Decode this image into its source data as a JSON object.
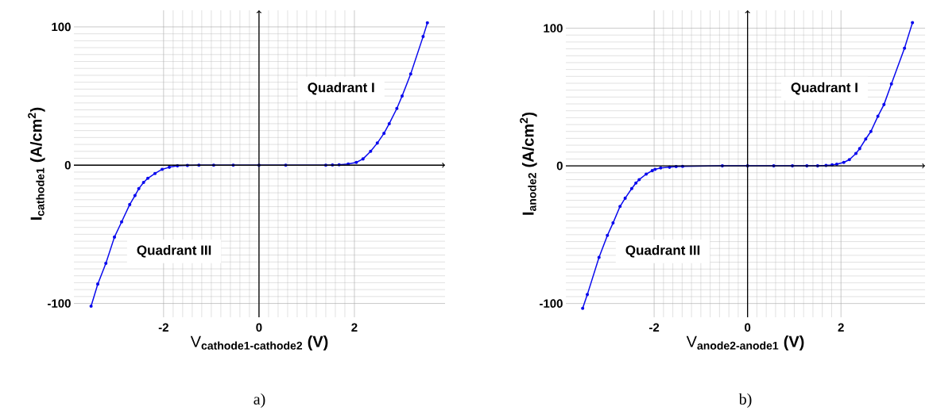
{
  "chart_data": [
    {
      "type": "line",
      "xlabel": "\\mathrm{V}_{\\text{cathode1-cathode2}}\\text{ (V)}",
      "ylabel": "I$_{cathode1}$ (A/cm$^{2}$)",
      "annotations": [
        "Quadrant I",
        "Quadrant III",
        "a)"
      ],
      "x": [
        -3.52,
        -3.38,
        -3.21,
        -3.03,
        -2.88,
        -2.71,
        -2.6,
        -2.52,
        -2.42,
        -2.33,
        -2.18,
        -2.03,
        -1.88,
        -1.71,
        -1.5,
        -1.26,
        -0.95,
        -0.54,
        0,
        0.56,
        1.4,
        1.54,
        1.68,
        1.87,
        2.04,
        2.18,
        2.34,
        2.48,
        2.62,
        2.73,
        2.89,
        3.0,
        3.18,
        3.44,
        3.53
      ],
      "series": [
        {
          "color": "#0a0aee",
          "values": [
            -102,
            -86,
            -71,
            -52,
            -41,
            -28.5,
            -22,
            -17,
            -12.5,
            -9.5,
            -6,
            -3,
            -1.5,
            -0.5,
            -0.2,
            0,
            0,
            0,
            0,
            0,
            0,
            0.1,
            0.3,
            0.8,
            2,
            4.5,
            10,
            16,
            23,
            30,
            41,
            50,
            66,
            93,
            103
          ]
        }
      ],
      "xlim": [
        -3.88,
        3.9
      ],
      "ylim": [
        -110,
        112
      ],
      "xticks": [
        -2,
        0,
        2
      ],
      "yticks": [
        -100,
        0,
        100
      ],
      "grid": true,
      "marker": "circle",
      "line_style": "solid"
    },
    {
      "type": "line",
      "xlabel": "\\mathrm{V}_{\\text{anode2-anode1}}\\text{ (V)}",
      "ylabel": "I$_{anode2}$ (A/cm$^{2}$)",
      "annotations": [
        "Quadrant I",
        "Quadrant III",
        "b)"
      ],
      "x": [
        -3.53,
        -3.43,
        -3.18,
        -3.0,
        -2.88,
        -2.73,
        -2.62,
        -2.48,
        -2.39,
        -2.32,
        -2.17,
        -2.04,
        -1.98,
        -1.86,
        -1.67,
        -1.53,
        -1.39,
        -0.54,
        0,
        0.56,
        0.96,
        1.27,
        1.5,
        1.68,
        1.81,
        1.91,
        2.06,
        2.18,
        2.32,
        2.4,
        2.53,
        2.64,
        2.79,
        2.92,
        3.08,
        3.36,
        3.53
      ],
      "series": [
        {
          "color": "#0a0aee",
          "values": [
            -103.5,
            -93.5,
            -66.5,
            -50.5,
            -41.5,
            -29.5,
            -23.5,
            -16.5,
            -12.5,
            -10,
            -6,
            -3.5,
            -2.5,
            -1.5,
            -1,
            -0.5,
            -0.4,
            0,
            0,
            0,
            0,
            0,
            0,
            0.3,
            0.7,
            1.2,
            2.5,
            4.5,
            9,
            12.5,
            19.5,
            25,
            36,
            44.5,
            59.5,
            85.5,
            104
          ]
        }
      ],
      "xlim": [
        -3.89,
        3.8
      ],
      "ylim": [
        -110,
        113
      ],
      "xticks": [
        -2,
        0,
        2
      ],
      "yticks": [
        -100,
        0,
        100
      ],
      "grid": true,
      "marker": "circle",
      "line_style": "solid"
    }
  ]
}
